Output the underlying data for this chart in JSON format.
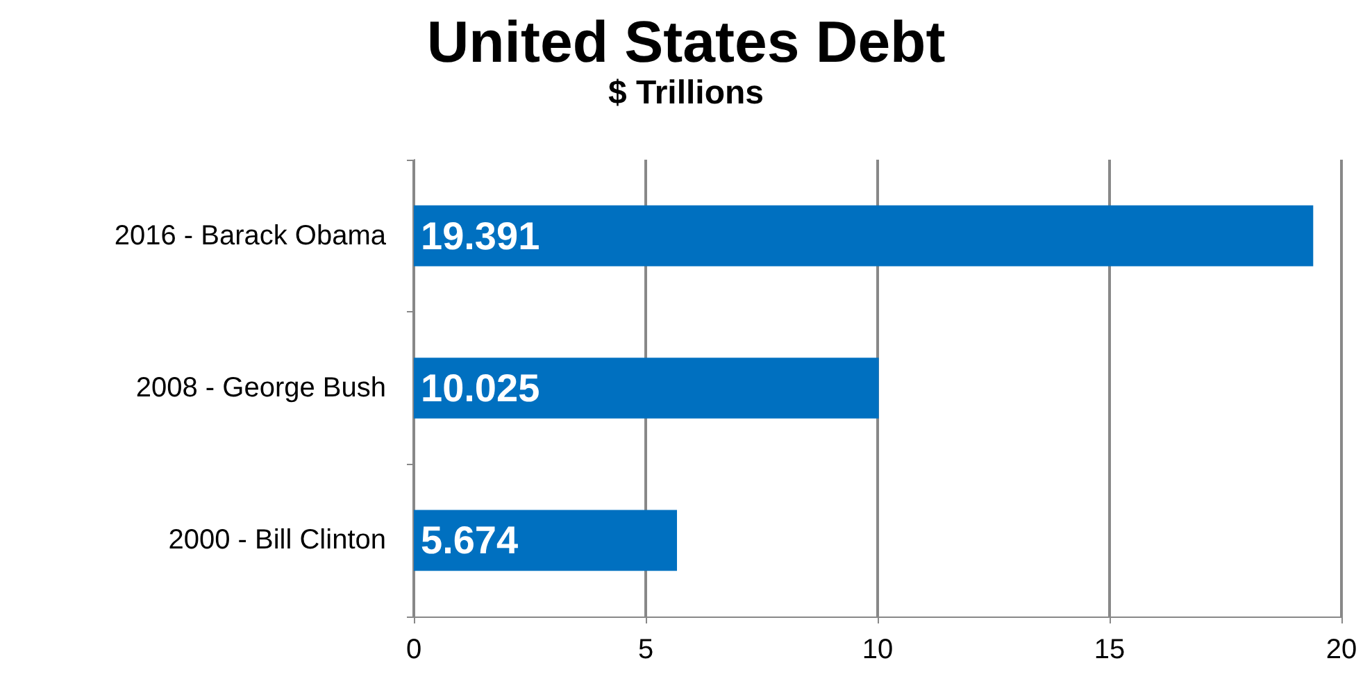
{
  "chart_data": {
    "type": "bar",
    "orientation": "horizontal",
    "title": "United States Debt",
    "subtitle": "$ Trillions",
    "categories": [
      "2016 - Barack Obama",
      "2008 - George Bush",
      "2000 - Bill Clinton"
    ],
    "values": [
      19.391,
      10.025,
      5.674
    ],
    "color": "#0070c0",
    "xlim": [
      0,
      20
    ],
    "xticks": [
      0,
      5,
      10,
      15,
      20
    ],
    "grid": "x",
    "data_labels": true
  }
}
